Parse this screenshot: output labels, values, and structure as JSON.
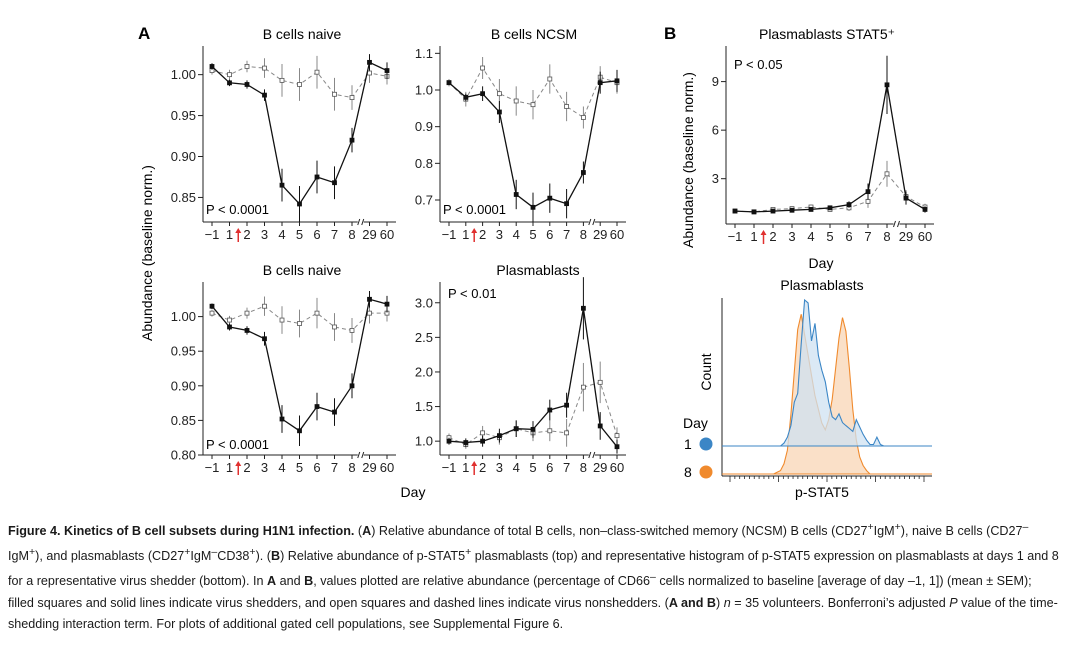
{
  "figure": {
    "panel_a_letter": "A",
    "panel_b_letter": "B",
    "a_ylabel": "Abundance (baseline norm.)",
    "a_xlabel": "Day",
    "b_ylabel": "Abundance (baseline norm.)",
    "b_xlabel": "Day",
    "day_ticks": [
      "−1",
      "1",
      "2",
      "3",
      "4",
      "5",
      "6",
      "7",
      "8",
      "29",
      "60"
    ],
    "colors": {
      "line": "#111111",
      "dashed": "#888888",
      "inoculation_arrow": "#e0302f",
      "hist_day1": "#3b86c6",
      "hist_day1_fill": "#cfe1f1",
      "hist_day8": "#f08a2d",
      "hist_day8_fill": "#f8d6b6"
    }
  },
  "chart_data": [
    {
      "type": "line",
      "title": "B cells naive",
      "p_value": "P < 0.0001",
      "ylim": [
        0.82,
        1.035
      ],
      "yticks": [
        "0.85",
        "0.90",
        "0.95",
        "1.00"
      ],
      "ytick_values": [
        0.85,
        0.9,
        0.95,
        1.0
      ],
      "series": [
        {
          "style": "shedders-solid-filled",
          "values": [
            1.01,
            0.99,
            0.988,
            0.975,
            0.865,
            0.842,
            0.875,
            0.868,
            0.92,
            1.015,
            1.005
          ],
          "errors": [
            0.004,
            0.004,
            0.005,
            0.007,
            0.02,
            0.022,
            0.02,
            0.02,
            0.015,
            0.01,
            0.01
          ]
        },
        {
          "style": "nonshedders-dashed-open",
          "values": [
            1.005,
            1.0,
            1.01,
            1.008,
            0.993,
            0.988,
            1.003,
            0.976,
            0.972,
            1.002,
            0.998
          ],
          "errors": [
            0.005,
            0.006,
            0.007,
            0.012,
            0.02,
            0.02,
            0.02,
            0.02,
            0.015,
            0.012,
            0.01
          ]
        }
      ]
    },
    {
      "type": "line",
      "title": "B cells NCSM",
      "p_value": "P < 0.0001",
      "ylim": [
        0.64,
        1.12
      ],
      "yticks": [
        "0.7",
        "0.8",
        "0.9",
        "1.0",
        "1.1"
      ],
      "ytick_values": [
        0.7,
        0.8,
        0.9,
        1.0,
        1.1
      ],
      "series": [
        {
          "style": "shedders-solid-filled",
          "values": [
            1.02,
            0.98,
            0.99,
            0.94,
            0.715,
            0.68,
            0.705,
            0.69,
            0.775,
            1.02,
            1.025
          ],
          "errors": [
            0.005,
            0.01,
            0.02,
            0.03,
            0.04,
            0.04,
            0.04,
            0.04,
            0.03,
            0.03,
            0.03
          ]
        },
        {
          "style": "nonshedders-dashed-open",
          "values": [
            1.02,
            0.975,
            1.06,
            0.99,
            0.97,
            0.96,
            1.03,
            0.955,
            0.925,
            1.035,
            1.02
          ],
          "errors": [
            0.01,
            0.02,
            0.03,
            0.04,
            0.04,
            0.04,
            0.04,
            0.04,
            0.03,
            0.03,
            0.03
          ]
        }
      ]
    },
    {
      "type": "line",
      "title": "B cells naive",
      "p_value": "P < 0.0001",
      "ylim": [
        0.8,
        1.05
      ],
      "yticks": [
        "0.80",
        "0.85",
        "0.90",
        "0.95",
        "1.00"
      ],
      "ytick_values": [
        0.8,
        0.85,
        0.9,
        0.95,
        1.0
      ],
      "series": [
        {
          "style": "shedders-solid-filled",
          "values": [
            1.015,
            0.985,
            0.98,
            0.968,
            0.852,
            0.835,
            0.87,
            0.862,
            0.9,
            1.025,
            1.018
          ],
          "errors": [
            0.004,
            0.005,
            0.006,
            0.01,
            0.02,
            0.022,
            0.02,
            0.02,
            0.018,
            0.012,
            0.012
          ]
        },
        {
          "style": "nonshedders-dashed-open",
          "values": [
            1.005,
            0.995,
            1.005,
            1.015,
            0.995,
            0.99,
            1.005,
            0.985,
            0.98,
            1.005,
            1.005
          ],
          "errors": [
            0.005,
            0.006,
            0.008,
            0.014,
            0.02,
            0.02,
            0.022,
            0.02,
            0.018,
            0.015,
            0.012
          ]
        }
      ]
    },
    {
      "type": "line",
      "title": "Plasmablasts",
      "p_value": "P < 0.01",
      "ylim": [
        0.8,
        3.3
      ],
      "yticks": [
        "1.0",
        "1.5",
        "2.0",
        "2.5",
        "3.0"
      ],
      "ytick_values": [
        1.0,
        1.5,
        2.0,
        2.5,
        3.0
      ],
      "series": [
        {
          "style": "shedders-solid-filled",
          "values": [
            1.0,
            0.98,
            1.0,
            1.08,
            1.18,
            1.17,
            1.45,
            1.52,
            2.92,
            1.22,
            0.92
          ],
          "errors": [
            0.05,
            0.06,
            0.08,
            0.1,
            0.12,
            0.12,
            0.15,
            0.18,
            0.45,
            0.2,
            0.1
          ]
        },
        {
          "style": "nonshedders-dashed-open",
          "values": [
            1.05,
            0.95,
            1.12,
            1.05,
            1.18,
            1.12,
            1.15,
            1.12,
            1.78,
            1.85,
            1.08
          ],
          "errors": [
            0.06,
            0.06,
            0.1,
            0.1,
            0.12,
            0.12,
            0.15,
            0.2,
            0.35,
            0.3,
            0.12
          ]
        }
      ]
    },
    {
      "type": "line",
      "title": "Plasmablasts STAT5⁺",
      "p_value": "P < 0.05",
      "ylim": [
        0.2,
        11.2
      ],
      "yticks": [
        "3",
        "6",
        "9"
      ],
      "ytick_values": [
        3,
        6,
        9
      ],
      "series": [
        {
          "style": "shedders-solid-filled",
          "values": [
            1.0,
            0.95,
            1.0,
            1.05,
            1.1,
            1.2,
            1.4,
            2.2,
            8.8,
            1.8,
            1.1
          ],
          "errors": [
            0.05,
            0.06,
            0.08,
            0.1,
            0.1,
            0.12,
            0.2,
            0.5,
            1.8,
            0.4,
            0.2
          ]
        },
        {
          "style": "nonshedders-dashed-open",
          "values": [
            1.0,
            0.95,
            1.1,
            1.15,
            1.25,
            1.1,
            1.2,
            1.6,
            3.3,
            1.9,
            1.25
          ],
          "errors": [
            0.05,
            0.06,
            0.1,
            0.12,
            0.15,
            0.1,
            0.2,
            0.4,
            0.8,
            0.4,
            0.2
          ]
        }
      ]
    },
    {
      "type": "area",
      "title": "Plasmablasts",
      "xlabel": "p-STAT5",
      "ylabel": "Count",
      "legend_title": "Day",
      "legend_placement": "left",
      "series": [
        {
          "name": "1",
          "values": [
            0,
            0,
            0,
            0,
            0,
            0,
            0,
            0,
            0,
            0,
            0,
            0,
            0,
            0,
            0,
            0,
            0,
            0,
            0.02,
            0.06,
            0.14,
            0.3,
            0.36,
            0.7,
            1.0,
            0.98,
            0.72,
            0.84,
            0.62,
            0.52,
            0.44,
            0.3,
            0.2,
            0.18,
            0.22,
            0.16,
            0.14,
            0.12,
            0.1,
            0.18,
            0.13,
            0.08,
            0.04,
            0.01,
            0.01,
            0.06,
            0.01,
            0,
            0,
            0,
            0,
            0,
            0,
            0,
            0,
            0,
            0,
            0,
            0,
            0,
            0,
            0
          ]
        },
        {
          "name": "8",
          "values": [
            0,
            0,
            0,
            0,
            0,
            0,
            0,
            0,
            0,
            0,
            0,
            0,
            0,
            0,
            0,
            0,
            0.01,
            0.02,
            0.06,
            0.14,
            0.35,
            0.6,
            0.85,
            0.94,
            0.82,
            0.7,
            0.58,
            0.46,
            0.38,
            0.3,
            0.26,
            0.32,
            0.44,
            0.62,
            0.8,
            0.92,
            0.84,
            0.62,
            0.38,
            0.2,
            0.1,
            0.05,
            0.02,
            0,
            0,
            0,
            0,
            0,
            0,
            0,
            0,
            0,
            0,
            0,
            0,
            0,
            0,
            0,
            0,
            0,
            0
          ]
        }
      ]
    }
  ],
  "caption": {
    "label": "Figure 4. Kinetics of B cell subsets during H1N1 infection.",
    "A1": "A",
    "t1": " Relative abundance of total B cells, non–class-switched memory (NCSM) B cells (CD27",
    "t1sup1": "+",
    "t1b": "IgM",
    "t1sup2": "+",
    "t1c": "), naive B cells (CD27",
    "t1sup3": "–",
    "t1d": "IgM",
    "t1sup4": "+",
    "t1e": "), and plasmablasts (CD27",
    "t1sup5": "+",
    "t1f": "IgM",
    "t1sup6": "–",
    "t1g": "CD38",
    "t1sup7": "+",
    "t1h": "). (",
    "B1": "B",
    "t2": ") Relative abundance of p-STAT5",
    "t2sup": "+",
    "t2b": " plasmablasts (top) and representative histogram of p-STAT5 expression on plasmablasts at days 1 and 8 for a representative virus shedder (bottom). In ",
    "A2": "A",
    "t3": " and ",
    "B2": "B",
    "t4": ", values plotted are relative abundance (percentage of CD66",
    "t4sup": "–",
    "t4b": " cells normalized to baseline [average of day –1, 1]) (mean ± SEM); filled squares and solid lines indicate virus shedders, and open squares and dashed lines indicate virus nonshedders. (",
    "AB": "A and B",
    "t5": ") ",
    "n": "n",
    "t6": " = 35 volunteers. Bonferroni’s adjusted ",
    "P": "P",
    "t7": " value of the time-shedding interaction term. For plots of additional gated cell populations, see Supplemental Figure 6."
  }
}
